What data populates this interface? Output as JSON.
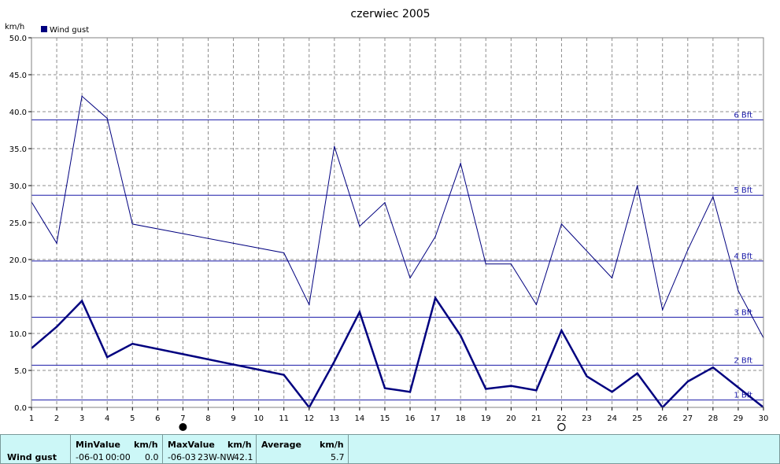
{
  "chart_data": {
    "type": "line",
    "title": "czerwiec 2005",
    "unit_label": "km/h",
    "legend": [
      {
        "name": "Wind gust",
        "color": "#00007f"
      }
    ],
    "legend_placement": "top-left",
    "grid": true,
    "ylim": [
      0,
      50
    ],
    "y_ticks": [
      "0.0",
      "5.0",
      "10.0",
      "15.0",
      "20.0",
      "25.0",
      "30.0",
      "35.0",
      "40.0",
      "45.0",
      "50.0"
    ],
    "x_ticks": [
      "1",
      "2",
      "3",
      "4",
      "5",
      "6",
      "7",
      "8",
      "9",
      "10",
      "11",
      "12",
      "13",
      "14",
      "15",
      "16",
      "17",
      "18",
      "19",
      "20",
      "21",
      "22",
      "23",
      "24",
      "25",
      "26",
      "27",
      "28",
      "29",
      "30"
    ],
    "xlim": [
      1,
      30
    ],
    "series": [
      {
        "name": "Wind gust",
        "role": "max",
        "color": "#00007f",
        "x": [
          1,
          2,
          3,
          4,
          5,
          11,
          12,
          13,
          14,
          15,
          16,
          17,
          18,
          19,
          20,
          21,
          22,
          24,
          25,
          26,
          27,
          28,
          29,
          30
        ],
        "values": [
          27.8,
          22.2,
          42.1,
          39.1,
          24.8,
          20.9,
          13.9,
          35.3,
          24.5,
          27.7,
          17.5,
          23.1,
          33.0,
          19.4,
          19.4,
          13.9,
          24.8,
          17.5,
          30.0,
          13.2,
          21.3,
          28.5,
          15.8,
          9.4
        ]
      },
      {
        "name": "Wind gust",
        "role": "average",
        "color": "#00007f",
        "x": [
          1,
          2,
          3,
          4,
          5,
          11,
          12,
          13,
          14,
          15,
          16,
          17,
          18,
          19,
          20,
          21,
          22,
          23,
          24,
          25,
          26,
          27,
          28,
          29,
          30
        ],
        "values": [
          8.0,
          10.9,
          14.4,
          6.8,
          8.6,
          4.4,
          0.0,
          6.2,
          12.9,
          2.6,
          2.1,
          14.8,
          9.7,
          2.5,
          2.9,
          2.3,
          10.4,
          4.2,
          2.1,
          4.6,
          0.0,
          3.5,
          5.4,
          2.7,
          0.0
        ]
      }
    ],
    "beaufort_lines": [
      {
        "label": "1 Bft",
        "value": 1.0
      },
      {
        "label": "2 Bft",
        "value": 5.7
      },
      {
        "label": "3 Bft",
        "value": 12.2
      },
      {
        "label": "4 Bft",
        "value": 19.8
      },
      {
        "label": "5 Bft",
        "value": 28.7
      },
      {
        "label": "6 Bft",
        "value": 38.9
      }
    ],
    "moon_phases": [
      {
        "day": 7,
        "phase": "new"
      },
      {
        "day": 22,
        "phase": "full"
      }
    ]
  },
  "stats": {
    "row_label": "Wind gust",
    "min": {
      "header": "MinValue",
      "unit": "km/h",
      "date": "-06-01",
      "time": "00:00",
      "value": "0.0"
    },
    "max": {
      "header": "MaxValue",
      "unit": "km/h",
      "date": "-06-03",
      "detail": "23W-NW",
      "value": "42.1"
    },
    "avg": {
      "header": "Average",
      "unit": "km/h",
      "value": "5.7"
    }
  }
}
